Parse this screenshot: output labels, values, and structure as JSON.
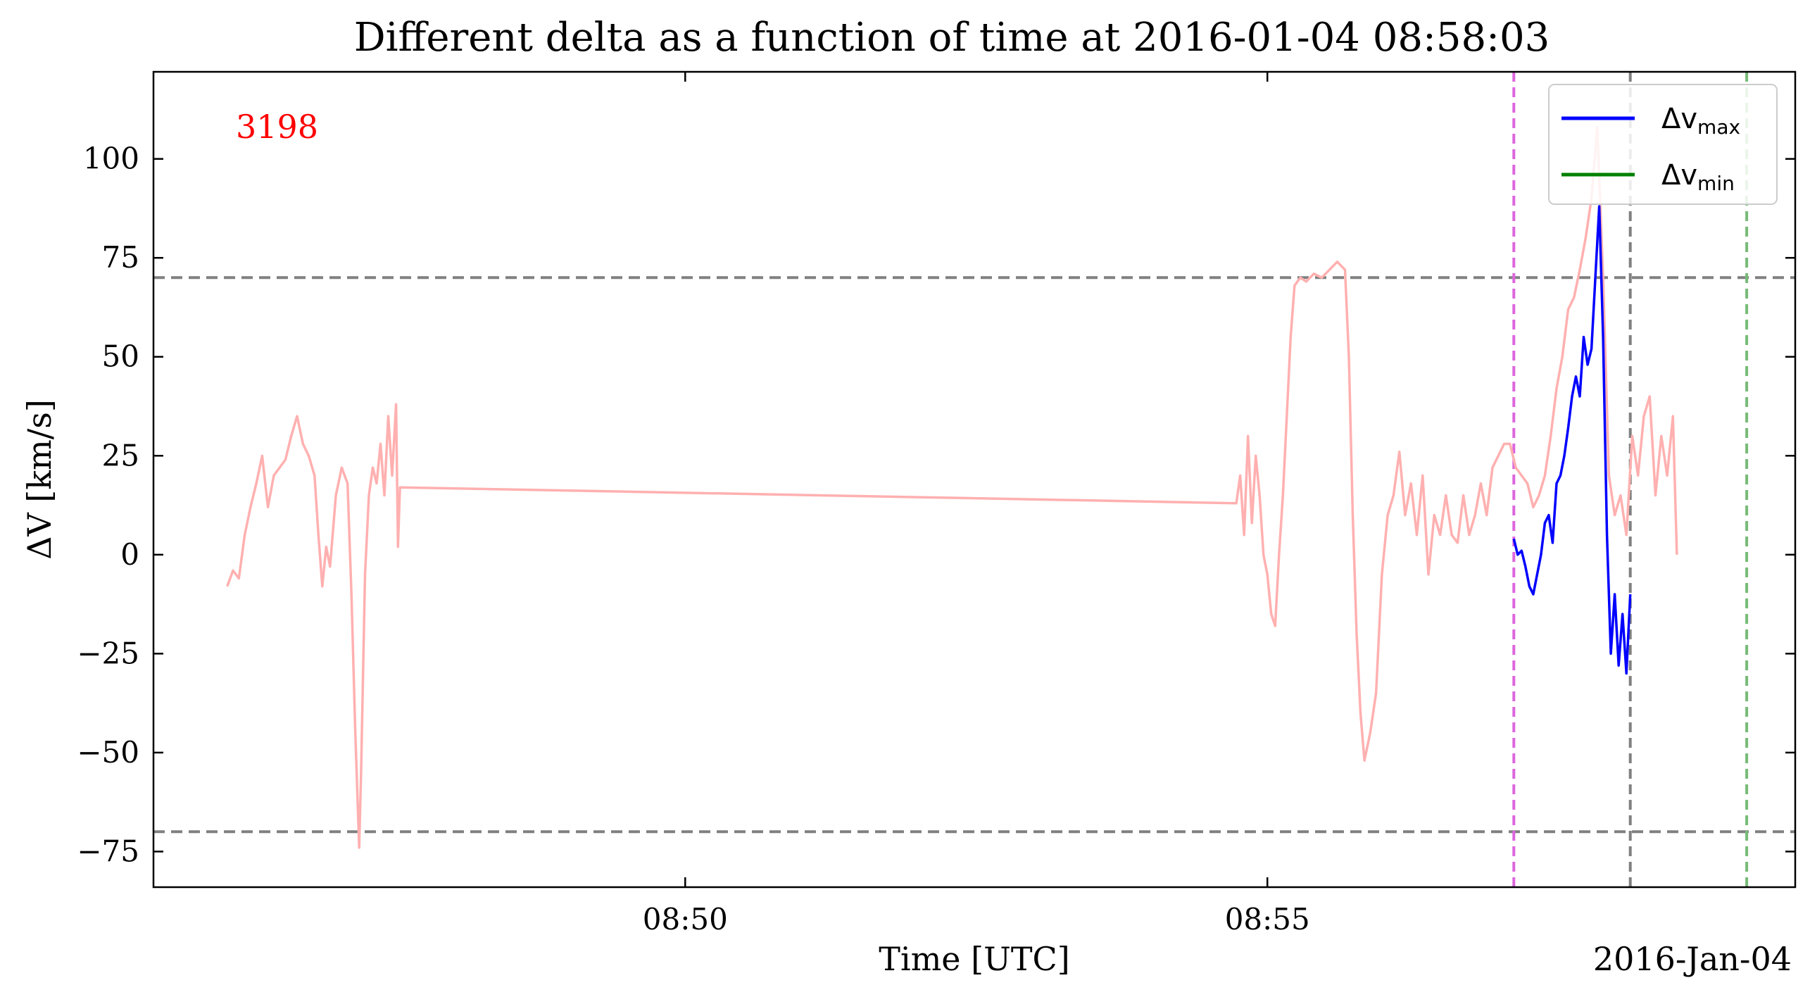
{
  "chart_data": {
    "type": "line",
    "title": "Different delta as a function of time at 2016-01-04 08:58:03",
    "xlabel": "Time [UTC]",
    "ylabel": "ΔV [km/s]",
    "date_label": "2016-Jan-04",
    "annotation": {
      "text": "3198",
      "color": "#ff0000"
    },
    "xlim": [
      "08:45:26",
      "08:59:32"
    ],
    "ylim": [
      -84,
      122
    ],
    "xticks": [
      {
        "t": "08:50:00",
        "label": "08:50"
      },
      {
        "t": "08:55:00",
        "label": "08:55"
      }
    ],
    "yticks": [
      {
        "v": 100,
        "label": "100"
      },
      {
        "v": 75,
        "label": "75"
      },
      {
        "v": 50,
        "label": "50"
      },
      {
        "v": 25,
        "label": "25"
      },
      {
        "v": 0,
        "label": "0"
      },
      {
        "v": -25,
        "label": "−25"
      },
      {
        "v": -50,
        "label": "−50"
      },
      {
        "v": -75,
        "label": "−75"
      }
    ],
    "hlines": [
      {
        "y": 70,
        "color": "#808080"
      },
      {
        "y": -70,
        "color": "#808080"
      }
    ],
    "vlines": [
      {
        "t": "08:57:07",
        "color": "#dd66dd"
      },
      {
        "t": "08:58:07",
        "color": "#808080"
      },
      {
        "t": "08:59:07",
        "color": "#77bb77"
      }
    ],
    "legend": {
      "placement": "top-right",
      "entries": [
        {
          "label": "Δv",
          "sub": "max",
          "color": "#0000ff"
        },
        {
          "label": "Δv",
          "sub": "min",
          "color": "#008000"
        }
      ]
    },
    "series": [
      {
        "color": "#ffb0b0",
        "points": [
          [
            "08:46:04",
            -8
          ],
          [
            "08:46:07",
            -4
          ],
          [
            "08:46:10",
            -6
          ],
          [
            "08:46:13",
            5
          ],
          [
            "08:46:16",
            12
          ],
          [
            "08:46:19",
            18
          ],
          [
            "08:46:22",
            25
          ],
          [
            "08:46:25",
            12
          ],
          [
            "08:46:28",
            20
          ],
          [
            "08:46:31",
            22
          ],
          [
            "08:46:34",
            24
          ],
          [
            "08:46:37",
            30
          ],
          [
            "08:46:40",
            35
          ],
          [
            "08:46:43",
            28
          ],
          [
            "08:46:46",
            25
          ],
          [
            "08:46:49",
            20
          ],
          [
            "08:46:51",
            5
          ],
          [
            "08:46:53",
            -8
          ],
          [
            "08:46:55",
            2
          ],
          [
            "08:46:57",
            -3
          ],
          [
            "08:47:00",
            15
          ],
          [
            "08:47:03",
            22
          ],
          [
            "08:47:06",
            18
          ],
          [
            "08:47:08",
            -10
          ],
          [
            "08:47:10",
            -45
          ],
          [
            "08:47:12",
            -74
          ],
          [
            "08:47:13",
            -55
          ],
          [
            "08:47:15",
            -5
          ],
          [
            "08:47:17",
            15
          ],
          [
            "08:47:19",
            22
          ],
          [
            "08:47:21",
            18
          ],
          [
            "08:47:23",
            28
          ],
          [
            "08:47:25",
            15
          ],
          [
            "08:47:27",
            35
          ],
          [
            "08:47:29",
            20
          ],
          [
            "08:47:31",
            38
          ],
          [
            "08:47:32",
            2
          ],
          [
            "08:47:33",
            17
          ],
          [
            "08:54:44",
            13
          ],
          [
            "08:54:46",
            20
          ],
          [
            "08:54:48",
            5
          ],
          [
            "08:54:50",
            30
          ],
          [
            "08:54:52",
            8
          ],
          [
            "08:54:54",
            25
          ],
          [
            "08:54:56",
            15
          ],
          [
            "08:54:58",
            0
          ],
          [
            "08:55:00",
            -5
          ],
          [
            "08:55:02",
            -15
          ],
          [
            "08:55:04",
            -18
          ],
          [
            "08:55:06",
            0
          ],
          [
            "08:55:08",
            15
          ],
          [
            "08:55:10",
            35
          ],
          [
            "08:55:12",
            55
          ],
          [
            "08:55:14",
            68
          ],
          [
            "08:55:17",
            70
          ],
          [
            "08:55:20",
            69
          ],
          [
            "08:55:24",
            71
          ],
          [
            "08:55:28",
            70
          ],
          [
            "08:55:32",
            72
          ],
          [
            "08:55:36",
            74
          ],
          [
            "08:55:40",
            72
          ],
          [
            "08:55:42",
            50
          ],
          [
            "08:55:44",
            10
          ],
          [
            "08:55:46",
            -20
          ],
          [
            "08:55:48",
            -40
          ],
          [
            "08:55:50",
            -52
          ],
          [
            "08:55:53",
            -45
          ],
          [
            "08:55:56",
            -35
          ],
          [
            "08:55:59",
            -5
          ],
          [
            "08:56:02",
            10
          ],
          [
            "08:56:05",
            15
          ],
          [
            "08:56:08",
            26
          ],
          [
            "08:56:11",
            10
          ],
          [
            "08:56:14",
            18
          ],
          [
            "08:56:17",
            5
          ],
          [
            "08:56:20",
            20
          ],
          [
            "08:56:23",
            -5
          ],
          [
            "08:56:26",
            10
          ],
          [
            "08:56:29",
            5
          ],
          [
            "08:56:32",
            15
          ],
          [
            "08:56:35",
            5
          ],
          [
            "08:56:38",
            3
          ],
          [
            "08:56:41",
            15
          ],
          [
            "08:56:44",
            5
          ],
          [
            "08:56:47",
            10
          ],
          [
            "08:56:50",
            18
          ],
          [
            "08:56:53",
            10
          ],
          [
            "08:56:56",
            22
          ],
          [
            "08:56:59",
            25
          ],
          [
            "08:57:02",
            28
          ],
          [
            "08:57:05",
            28
          ],
          [
            "08:57:08",
            22
          ],
          [
            "08:57:11",
            20
          ],
          [
            "08:57:14",
            18
          ],
          [
            "08:57:17",
            12
          ],
          [
            "08:57:20",
            15
          ],
          [
            "08:57:23",
            20
          ],
          [
            "08:57:26",
            30
          ],
          [
            "08:57:29",
            42
          ],
          [
            "08:57:32",
            50
          ],
          [
            "08:57:35",
            62
          ],
          [
            "08:57:38",
            65
          ],
          [
            "08:57:41",
            72
          ],
          [
            "08:57:44",
            80
          ],
          [
            "08:57:47",
            90
          ],
          [
            "08:57:50",
            108
          ],
          [
            "08:57:53",
            70
          ],
          [
            "08:57:56",
            20
          ],
          [
            "08:57:59",
            10
          ],
          [
            "08:58:02",
            15
          ],
          [
            "08:58:05",
            5
          ],
          [
            "08:58:08",
            30
          ],
          [
            "08:58:11",
            20
          ],
          [
            "08:58:14",
            35
          ],
          [
            "08:58:17",
            40
          ],
          [
            "08:58:20",
            15
          ],
          [
            "08:58:23",
            30
          ],
          [
            "08:58:26",
            20
          ],
          [
            "08:58:29",
            35
          ],
          [
            "08:58:31",
            0
          ]
        ]
      },
      {
        "color": "#0000ff",
        "points": [
          [
            "08:57:07",
            4
          ],
          [
            "08:57:09",
            0
          ],
          [
            "08:57:11",
            1
          ],
          [
            "08:57:13",
            -3
          ],
          [
            "08:57:15",
            -8
          ],
          [
            "08:57:17",
            -10
          ],
          [
            "08:57:19",
            -5
          ],
          [
            "08:57:21",
            0
          ],
          [
            "08:57:23",
            8
          ],
          [
            "08:57:25",
            10
          ],
          [
            "08:57:27",
            3
          ],
          [
            "08:57:29",
            18
          ],
          [
            "08:57:31",
            20
          ],
          [
            "08:57:33",
            25
          ],
          [
            "08:57:35",
            32
          ],
          [
            "08:57:37",
            40
          ],
          [
            "08:57:39",
            45
          ],
          [
            "08:57:41",
            40
          ],
          [
            "08:57:43",
            55
          ],
          [
            "08:57:45",
            48
          ],
          [
            "08:57:47",
            52
          ],
          [
            "08:57:49",
            70
          ],
          [
            "08:57:51",
            88
          ],
          [
            "08:57:53",
            55
          ],
          [
            "08:57:55",
            5
          ],
          [
            "08:57:57",
            -25
          ],
          [
            "08:57:59",
            -10
          ],
          [
            "08:58:01",
            -28
          ],
          [
            "08:58:03",
            -15
          ],
          [
            "08:58:05",
            -30
          ],
          [
            "08:58:07",
            -10
          ]
        ]
      }
    ]
  }
}
